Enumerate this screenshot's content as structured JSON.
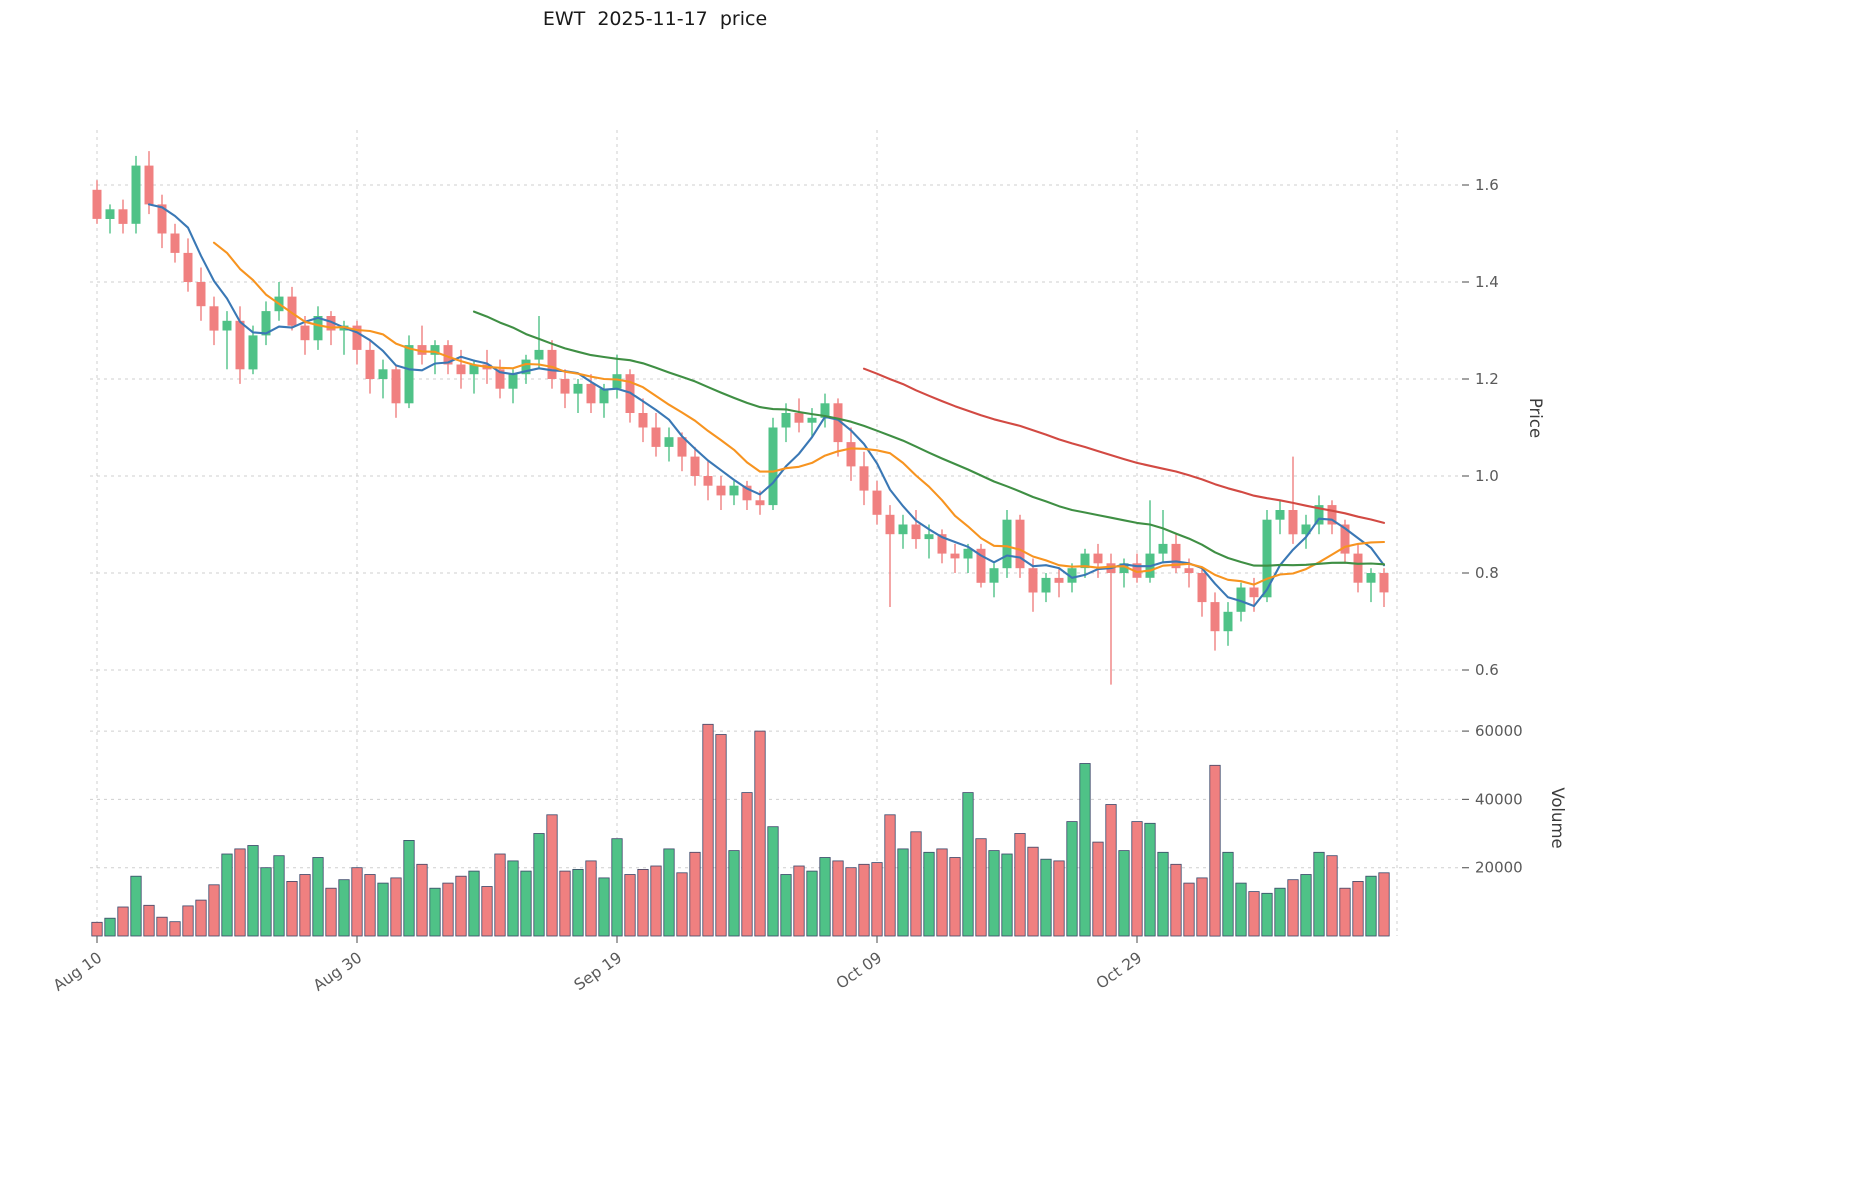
{
  "title": "EWT  2025-11-17  price",
  "axes": {
    "price_label": "Price",
    "volume_label": "Volume",
    "price_ticks": [
      0.6,
      0.8,
      1.0,
      1.2,
      1.4,
      1.6
    ],
    "volume_ticks": [
      20000,
      40000,
      60000
    ],
    "x_tick_labels": [
      "Aug 10",
      "Aug 30",
      "Sep 19",
      "Oct 09",
      "Oct 29"
    ],
    "x_tick_indices": [
      0,
      20,
      40,
      60,
      80
    ]
  },
  "colors": {
    "up": "#4fc287",
    "down": "#f08080",
    "volume_edge": "#3b4668",
    "grid": "#cfcfcf",
    "tick_text": "#5a5a5a",
    "axis_text": "#3c3c3c"
  },
  "chart_data": {
    "type": "candlestick",
    "symbol": "EWT",
    "as_of_date": "2025-11-17",
    "frequency": "daily",
    "grid": true,
    "ylim_price": [
      0.55,
      1.72
    ],
    "ylim_volume": [
      0,
      69000
    ],
    "moving_averages": [
      {
        "name": "MA5",
        "window": 5,
        "color": "#3a78b5"
      },
      {
        "name": "MA10",
        "window": 10,
        "color": "#f79420"
      },
      {
        "name": "MA30",
        "window": 30,
        "color": "#3f8f44"
      },
      {
        "name": "MA60",
        "window": 60,
        "color": "#d24a43"
      }
    ],
    "candles_format": [
      "open",
      "high",
      "low",
      "close",
      "volume"
    ],
    "candles": [
      [
        1.59,
        1.61,
        1.52,
        1.53,
        4000
      ],
      [
        1.53,
        1.56,
        1.5,
        1.55,
        5200
      ],
      [
        1.55,
        1.57,
        1.5,
        1.52,
        8500
      ],
      [
        1.52,
        1.66,
        1.5,
        1.64,
        17500
      ],
      [
        1.64,
        1.67,
        1.54,
        1.56,
        9000
      ],
      [
        1.56,
        1.58,
        1.47,
        1.5,
        5500
      ],
      [
        1.5,
        1.52,
        1.44,
        1.46,
        4200
      ],
      [
        1.46,
        1.49,
        1.38,
        1.4,
        8800
      ],
      [
        1.4,
        1.43,
        1.32,
        1.35,
        10500
      ],
      [
        1.35,
        1.37,
        1.27,
        1.3,
        15000
      ],
      [
        1.3,
        1.34,
        1.22,
        1.32,
        24000
      ],
      [
        1.32,
        1.35,
        1.19,
        1.22,
        25500
      ],
      [
        1.22,
        1.31,
        1.21,
        1.29,
        26500
      ],
      [
        1.29,
        1.36,
        1.27,
        1.34,
        20000
      ],
      [
        1.34,
        1.4,
        1.32,
        1.37,
        23500
      ],
      [
        1.37,
        1.39,
        1.3,
        1.31,
        16000
      ],
      [
        1.31,
        1.33,
        1.25,
        1.28,
        18000
      ],
      [
        1.28,
        1.35,
        1.26,
        1.33,
        23000
      ],
      [
        1.33,
        1.34,
        1.27,
        1.3,
        14000
      ],
      [
        1.3,
        1.32,
        1.25,
        1.31,
        16500
      ],
      [
        1.31,
        1.32,
        1.23,
        1.26,
        20000
      ],
      [
        1.26,
        1.28,
        1.17,
        1.2,
        18000
      ],
      [
        1.2,
        1.24,
        1.16,
        1.22,
        15500
      ],
      [
        1.22,
        1.23,
        1.12,
        1.15,
        17000
      ],
      [
        1.15,
        1.29,
        1.14,
        1.27,
        28000
      ],
      [
        1.27,
        1.31,
        1.23,
        1.25,
        21000
      ],
      [
        1.25,
        1.28,
        1.21,
        1.27,
        14000
      ],
      [
        1.27,
        1.28,
        1.21,
        1.23,
        15500
      ],
      [
        1.23,
        1.26,
        1.18,
        1.21,
        17500
      ],
      [
        1.21,
        1.24,
        1.17,
        1.23,
        19000
      ],
      [
        1.23,
        1.26,
        1.19,
        1.22,
        14500
      ],
      [
        1.22,
        1.24,
        1.16,
        1.18,
        24000
      ],
      [
        1.18,
        1.22,
        1.15,
        1.21,
        22000
      ],
      [
        1.21,
        1.25,
        1.19,
        1.24,
        19000
      ],
      [
        1.24,
        1.33,
        1.22,
        1.26,
        30000
      ],
      [
        1.26,
        1.28,
        1.18,
        1.2,
        35500
      ],
      [
        1.2,
        1.22,
        1.14,
        1.17,
        19000
      ],
      [
        1.17,
        1.2,
        1.13,
        1.19,
        19500
      ],
      [
        1.19,
        1.21,
        1.13,
        1.15,
        22000
      ],
      [
        1.15,
        1.19,
        1.12,
        1.18,
        17000
      ],
      [
        1.18,
        1.25,
        1.16,
        1.21,
        28500
      ],
      [
        1.21,
        1.22,
        1.11,
        1.13,
        18000
      ],
      [
        1.13,
        1.16,
        1.07,
        1.1,
        19500
      ],
      [
        1.1,
        1.13,
        1.04,
        1.06,
        20500
      ],
      [
        1.06,
        1.1,
        1.03,
        1.08,
        25500
      ],
      [
        1.08,
        1.09,
        1.01,
        1.04,
        18500
      ],
      [
        1.04,
        1.06,
        0.98,
        1.0,
        24500
      ],
      [
        1.0,
        1.03,
        0.95,
        0.98,
        62000
      ],
      [
        0.98,
        1.0,
        0.93,
        0.96,
        59000
      ],
      [
        0.96,
        0.99,
        0.94,
        0.98,
        25000
      ],
      [
        0.98,
        0.99,
        0.93,
        0.95,
        42000
      ],
      [
        0.95,
        0.97,
        0.92,
        0.94,
        60000
      ],
      [
        0.94,
        1.12,
        0.93,
        1.1,
        32000
      ],
      [
        1.1,
        1.15,
        1.07,
        1.13,
        18000
      ],
      [
        1.13,
        1.16,
        1.09,
        1.11,
        20500
      ],
      [
        1.11,
        1.14,
        1.08,
        1.12,
        19000
      ],
      [
        1.12,
        1.17,
        1.1,
        1.15,
        23000
      ],
      [
        1.15,
        1.16,
        1.04,
        1.07,
        22000
      ],
      [
        1.07,
        1.1,
        0.99,
        1.02,
        20000
      ],
      [
        1.02,
        1.05,
        0.94,
        0.97,
        21000
      ],
      [
        0.97,
        0.99,
        0.9,
        0.92,
        21500
      ],
      [
        0.92,
        0.94,
        0.73,
        0.88,
        35500
      ],
      [
        0.88,
        0.92,
        0.85,
        0.9,
        25500
      ],
      [
        0.9,
        0.93,
        0.85,
        0.87,
        30500
      ],
      [
        0.87,
        0.9,
        0.83,
        0.88,
        24500
      ],
      [
        0.88,
        0.89,
        0.82,
        0.84,
        25500
      ],
      [
        0.84,
        0.86,
        0.8,
        0.83,
        23000
      ],
      [
        0.83,
        0.86,
        0.8,
        0.85,
        42000
      ],
      [
        0.85,
        0.86,
        0.77,
        0.78,
        28500
      ],
      [
        0.78,
        0.82,
        0.75,
        0.81,
        25000
      ],
      [
        0.81,
        0.93,
        0.79,
        0.91,
        24000
      ],
      [
        0.91,
        0.92,
        0.79,
        0.81,
        30000
      ],
      [
        0.81,
        0.83,
        0.72,
        0.76,
        26000
      ],
      [
        0.76,
        0.8,
        0.74,
        0.79,
        22500
      ],
      [
        0.79,
        0.81,
        0.75,
        0.78,
        22000
      ],
      [
        0.78,
        0.82,
        0.76,
        0.81,
        33500
      ],
      [
        0.81,
        0.85,
        0.79,
        0.84,
        50500
      ],
      [
        0.84,
        0.86,
        0.79,
        0.82,
        27500
      ],
      [
        0.82,
        0.84,
        0.57,
        0.8,
        38500
      ],
      [
        0.8,
        0.83,
        0.77,
        0.82,
        25000
      ],
      [
        0.82,
        0.84,
        0.78,
        0.79,
        33500
      ],
      [
        0.79,
        0.95,
        0.78,
        0.84,
        33000
      ],
      [
        0.84,
        0.93,
        0.82,
        0.86,
        24500
      ],
      [
        0.86,
        0.88,
        0.8,
        0.81,
        21000
      ],
      [
        0.81,
        0.83,
        0.77,
        0.8,
        15500
      ],
      [
        0.8,
        0.81,
        0.71,
        0.74,
        17000
      ],
      [
        0.74,
        0.76,
        0.64,
        0.68,
        50000
      ],
      [
        0.68,
        0.74,
        0.65,
        0.72,
        24500
      ],
      [
        0.72,
        0.78,
        0.7,
        0.77,
        15500
      ],
      [
        0.77,
        0.79,
        0.72,
        0.75,
        13000
      ],
      [
        0.75,
        0.93,
        0.74,
        0.91,
        12500
      ],
      [
        0.91,
        0.95,
        0.88,
        0.93,
        14000
      ],
      [
        0.93,
        1.04,
        0.86,
        0.88,
        16500
      ],
      [
        0.88,
        0.92,
        0.85,
        0.9,
        18000
      ],
      [
        0.9,
        0.96,
        0.88,
        0.94,
        24500
      ],
      [
        0.94,
        0.95,
        0.88,
        0.9,
        23500
      ],
      [
        0.9,
        0.91,
        0.82,
        0.84,
        14000
      ],
      [
        0.84,
        0.86,
        0.76,
        0.78,
        16000
      ],
      [
        0.78,
        0.81,
        0.74,
        0.8,
        17500
      ],
      [
        0.8,
        0.81,
        0.73,
        0.76,
        18500
      ]
    ]
  }
}
